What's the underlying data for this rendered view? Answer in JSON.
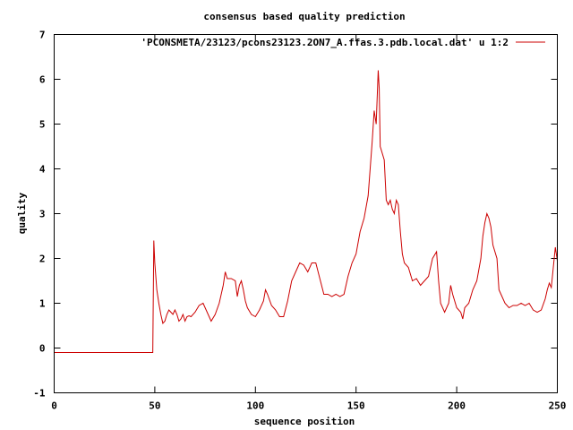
{
  "chart_data": {
    "type": "line",
    "title": "consensus based quality prediction",
    "xlabel": "sequence position",
    "ylabel": "quality",
    "xlim": [
      0,
      250
    ],
    "ylim": [
      -1,
      7
    ],
    "xticks": [
      0,
      50,
      100,
      150,
      200,
      250
    ],
    "yticks": [
      -1,
      0,
      1,
      2,
      3,
      4,
      5,
      6,
      7
    ],
    "legend_position": "top-right",
    "series": [
      {
        "name": "'PCONSMETA/23123/pcons23123.2ON7_A.ffas.3.pdb.local.dat' u 1:2",
        "color": "#cc0000",
        "points": [
          [
            0,
            -0.1
          ],
          [
            49,
            -0.1
          ],
          [
            49.5,
            2.4
          ],
          [
            50,
            1.9
          ],
          [
            51,
            1.3
          ],
          [
            52,
            1.0
          ],
          [
            53,
            0.75
          ],
          [
            54,
            0.55
          ],
          [
            55,
            0.6
          ],
          [
            56,
            0.75
          ],
          [
            57,
            0.85
          ],
          [
            58,
            0.8
          ],
          [
            59,
            0.75
          ],
          [
            60,
            0.85
          ],
          [
            61,
            0.75
          ],
          [
            62,
            0.6
          ],
          [
            63,
            0.65
          ],
          [
            64,
            0.75
          ],
          [
            65,
            0.6
          ],
          [
            66,
            0.7
          ],
          [
            67,
            0.72
          ],
          [
            68,
            0.7
          ],
          [
            70,
            0.8
          ],
          [
            72,
            0.95
          ],
          [
            74,
            1.0
          ],
          [
            76,
            0.8
          ],
          [
            78,
            0.6
          ],
          [
            80,
            0.75
          ],
          [
            82,
            1.0
          ],
          [
            84,
            1.4
          ],
          [
            85,
            1.7
          ],
          [
            86,
            1.55
          ],
          [
            88,
            1.55
          ],
          [
            90,
            1.5
          ],
          [
            91,
            1.15
          ],
          [
            92,
            1.4
          ],
          [
            93,
            1.5
          ],
          [
            94,
            1.3
          ],
          [
            95,
            1.05
          ],
          [
            96,
            0.9
          ],
          [
            98,
            0.75
          ],
          [
            100,
            0.7
          ],
          [
            102,
            0.85
          ],
          [
            104,
            1.05
          ],
          [
            105,
            1.3
          ],
          [
            106,
            1.2
          ],
          [
            108,
            0.95
          ],
          [
            110,
            0.85
          ],
          [
            112,
            0.7
          ],
          [
            114,
            0.7
          ],
          [
            116,
            1.05
          ],
          [
            118,
            1.5
          ],
          [
            120,
            1.7
          ],
          [
            122,
            1.9
          ],
          [
            124,
            1.85
          ],
          [
            126,
            1.7
          ],
          [
            128,
            1.9
          ],
          [
            130,
            1.9
          ],
          [
            132,
            1.55
          ],
          [
            134,
            1.2
          ],
          [
            136,
            1.2
          ],
          [
            138,
            1.15
          ],
          [
            140,
            1.2
          ],
          [
            142,
            1.15
          ],
          [
            144,
            1.2
          ],
          [
            146,
            1.6
          ],
          [
            148,
            1.9
          ],
          [
            150,
            2.1
          ],
          [
            152,
            2.6
          ],
          [
            154,
            2.9
          ],
          [
            156,
            3.4
          ],
          [
            158,
            4.6
          ],
          [
            159,
            5.3
          ],
          [
            160,
            5.0
          ],
          [
            161,
            6.2
          ],
          [
            161.5,
            5.8
          ],
          [
            162,
            4.5
          ],
          [
            164,
            4.2
          ],
          [
            165,
            3.3
          ],
          [
            166,
            3.2
          ],
          [
            167,
            3.3
          ],
          [
            168,
            3.1
          ],
          [
            169,
            3.0
          ],
          [
            170,
            3.3
          ],
          [
            171,
            3.2
          ],
          [
            172,
            2.6
          ],
          [
            173,
            2.1
          ],
          [
            174,
            1.9
          ],
          [
            176,
            1.8
          ],
          [
            178,
            1.5
          ],
          [
            180,
            1.55
          ],
          [
            182,
            1.4
          ],
          [
            184,
            1.5
          ],
          [
            186,
            1.6
          ],
          [
            188,
            2.0
          ],
          [
            190,
            2.15
          ],
          [
            191,
            1.5
          ],
          [
            192,
            1.0
          ],
          [
            194,
            0.8
          ],
          [
            196,
            1.0
          ],
          [
            197,
            1.4
          ],
          [
            198,
            1.2
          ],
          [
            200,
            0.9
          ],
          [
            202,
            0.8
          ],
          [
            203,
            0.65
          ],
          [
            204,
            0.9
          ],
          [
            206,
            1.0
          ],
          [
            208,
            1.3
          ],
          [
            210,
            1.5
          ],
          [
            212,
            2.0
          ],
          [
            213,
            2.5
          ],
          [
            214,
            2.8
          ],
          [
            215,
            3.0
          ],
          [
            216,
            2.9
          ],
          [
            217,
            2.7
          ],
          [
            218,
            2.3
          ],
          [
            220,
            2.0
          ],
          [
            221,
            1.3
          ],
          [
            222,
            1.2
          ],
          [
            224,
            1.0
          ],
          [
            226,
            0.9
          ],
          [
            228,
            0.95
          ],
          [
            230,
            0.95
          ],
          [
            232,
            1.0
          ],
          [
            234,
            0.95
          ],
          [
            236,
            1.0
          ],
          [
            238,
            0.85
          ],
          [
            240,
            0.8
          ],
          [
            242,
            0.85
          ],
          [
            244,
            1.1
          ],
          [
            245,
            1.3
          ],
          [
            246,
            1.45
          ],
          [
            247,
            1.35
          ],
          [
            248,
            1.8
          ],
          [
            249,
            2.25
          ],
          [
            250,
            1.95
          ]
        ]
      }
    ]
  }
}
